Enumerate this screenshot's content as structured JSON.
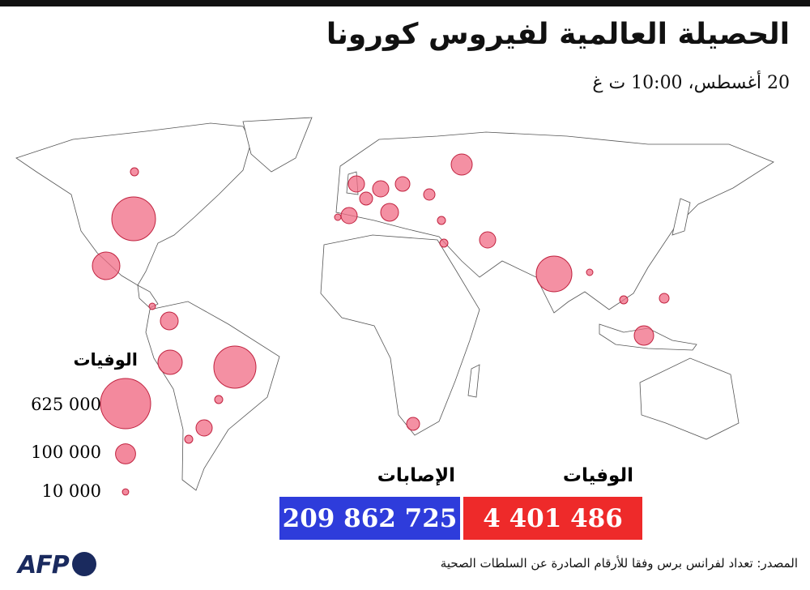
{
  "header": {
    "title": "الحصيلة العالمية لفيروس كورونا",
    "subtitle": "20 أغسطس، 10:00 ت غ"
  },
  "legend": {
    "title": "الوفيات",
    "items": [
      {
        "value": 625000,
        "label": "625 000"
      },
      {
        "value": 100000,
        "label": "100 000"
      },
      {
        "value": 10000,
        "label": "10 000"
      }
    ]
  },
  "totals": {
    "cases": {
      "label": "الإصابات",
      "value": "209 862 725"
    },
    "deaths": {
      "label": "الوفيات",
      "value": "4 401 486"
    }
  },
  "footer": {
    "logo": "AFP",
    "source": "المصدر: تعداد لفرانس برس وفقا للأرقام الصادرة عن السلطات الصحية"
  }
}
